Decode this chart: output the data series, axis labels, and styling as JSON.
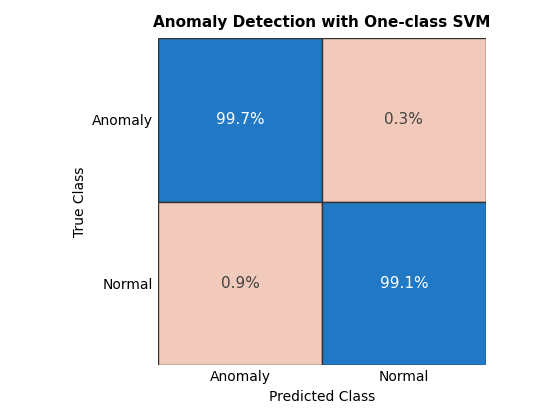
{
  "title": "Anomaly Detection with One-class SVM",
  "xlabel": "Predicted Class",
  "ylabel": "True Class",
  "row_labels": [
    "Anomaly",
    "Normal"
  ],
  "col_labels": [
    "Anomaly",
    "Normal"
  ],
  "matrix": [
    [
      99.7,
      0.3
    ],
    [
      0.9,
      99.1
    ]
  ],
  "cell_texts": [
    [
      "99.7%",
      "0.3%"
    ],
    [
      "0.9%",
      "99.1%"
    ]
  ],
  "diag_color": "#2178C4",
  "offdiag_color": "#F2CABB",
  "text_on_diag_color": "#FFFFFF",
  "text_on_offdiag_color": "#404040",
  "title_fontsize": 11,
  "label_fontsize": 10,
  "tick_fontsize": 10,
  "cell_text_fontsize": 11,
  "bg_color": "#FFFFFF"
}
